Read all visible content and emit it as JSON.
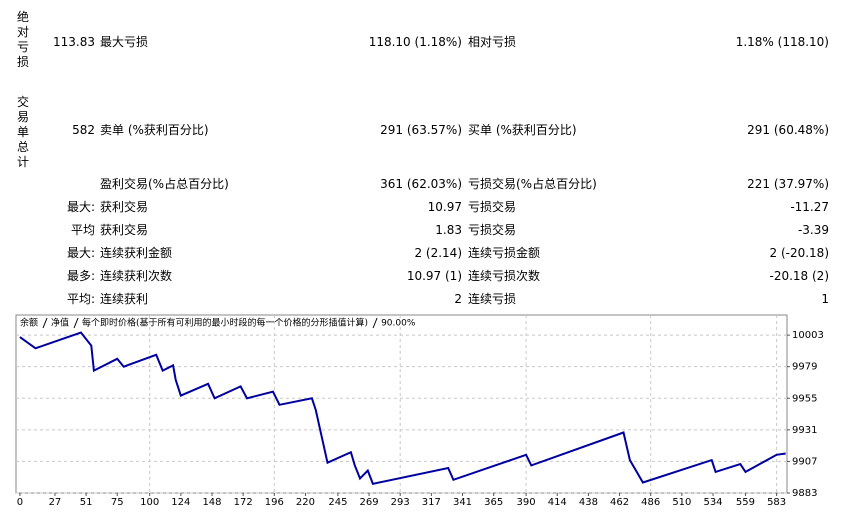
{
  "side_labels": [
    "绝对亏损",
    "交易单总计"
  ],
  "rows": [
    [
      "113.83",
      "最大亏损",
      "118.10 (1.18%)",
      "相对亏损",
      "1.18% (118.10)"
    ],
    [
      "582",
      "卖单 (%获利百分比)",
      "291 (63.57%)",
      "买单 (%获利百分比)",
      "291 (60.48%)"
    ],
    [
      null,
      "盈利交易(%占总百分比)",
      "361 (62.03%)",
      "亏损交易(%占总百分比)",
      "221 (37.97%)"
    ],
    [
      "最大:",
      "获利交易",
      "10.97",
      "亏损交易",
      "-11.27"
    ],
    [
      "平均",
      "获利交易",
      "1.83",
      "亏损交易",
      "-3.39"
    ],
    [
      "最大:",
      "连续获利金额",
      "2 (2.14)",
      "连续亏损金额",
      "2 (-20.18)"
    ],
    [
      "最多:",
      "连续获利次数",
      "10.97 (1)",
      "连续亏损次数",
      "-20.18 (2)"
    ],
    [
      "平均:",
      "连续获利",
      "2",
      "连续亏损",
      "1"
    ]
  ],
  "chart_data": {
    "type": "line",
    "legend_notes": [
      {
        "text": "净值",
        "color": "#008000"
      },
      {
        "text": "每个即时价格(基于所有可利用的最小时段的每一个价格的分形插值计算)",
        "color": "#000000"
      },
      {
        "text": "90.00%",
        "color": "#000000"
      }
    ],
    "series": [
      {
        "name": "余额",
        "color": "#0000a0",
        "x": [
          0,
          12,
          47,
          55,
          57,
          75,
          80,
          105,
          110,
          118,
          120,
          124,
          145,
          150,
          170,
          175,
          195,
          200,
          225,
          228,
          237,
          255,
          258,
          262,
          268,
          272,
          330,
          334,
          390,
          394,
          465,
          470,
          480,
          533,
          536,
          555,
          559,
          583,
          590
        ],
        "values": [
          10001.5,
          9993,
          10005,
          9995,
          9976,
          9985,
          9979,
          9988,
          9976,
          9980,
          9969,
          9957,
          9966,
          9955,
          9964,
          9955,
          9960,
          9950,
          9955,
          9946,
          9906,
          9914,
          9904,
          9894,
          9900,
          9890,
          9902,
          9893,
          9912,
          9904,
          9929,
          9908,
          9891,
          9908,
          9899,
          9905,
          9899,
          9912,
          9913
        ]
      }
    ],
    "xlim": [
      -3,
      591
    ],
    "ylim": [
      9883,
      10016
    ],
    "xticks": [
      0,
      27,
      51,
      75,
      100,
      124,
      148,
      172,
      196,
      220,
      245,
      269,
      293,
      317,
      341,
      365,
      390,
      414,
      438,
      462,
      486,
      510,
      534,
      559,
      583
    ],
    "yticks": [
      10003,
      9979,
      9955,
      9931,
      9907,
      9883
    ],
    "grid": true
  }
}
